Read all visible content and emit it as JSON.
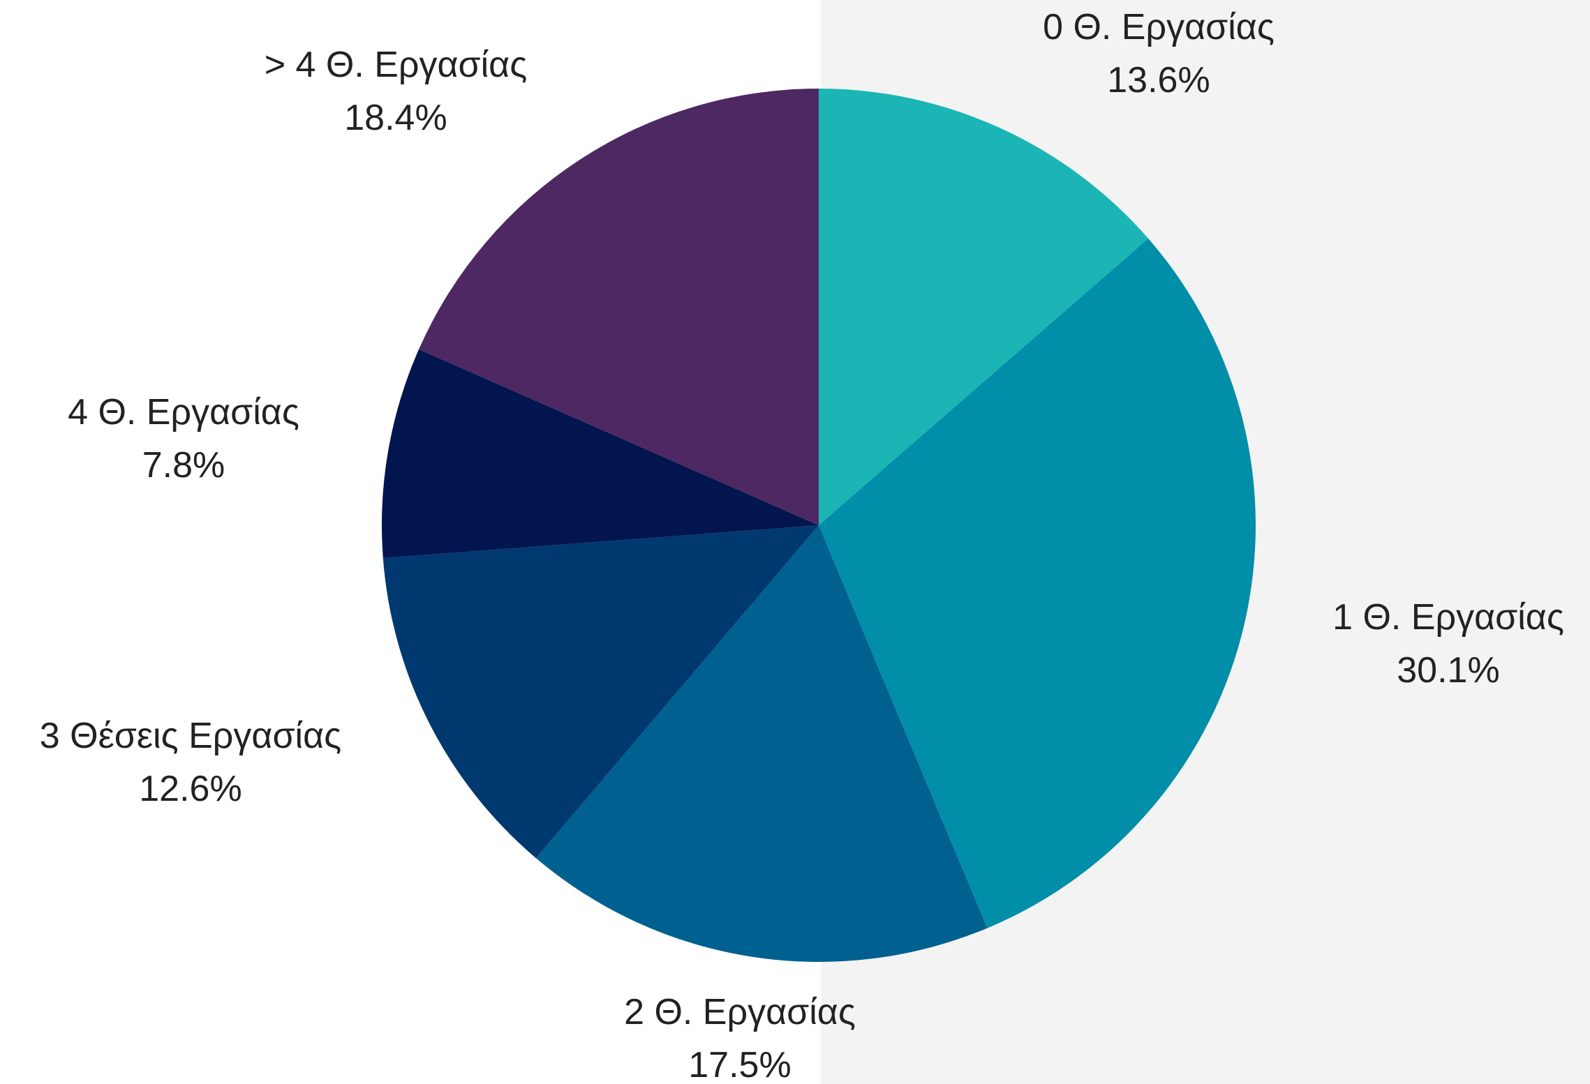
{
  "chart_data": {
    "type": "pie",
    "title": "",
    "start_angle_deg": 0,
    "direction": "clockwise",
    "slices": [
      {
        "label": "0 Θ. Εργασίας",
        "value": 13.6,
        "value_label": "13.6%",
        "color": "#1bb5b5"
      },
      {
        "label": "1 Θ. Εργασίας",
        "value": 30.1,
        "value_label": "30.1%",
        "color": "#008ea9"
      },
      {
        "label": "2 Θ. Εργασίας",
        "value": 17.5,
        "value_label": "17.5%",
        "color": "#006090"
      },
      {
        "label": "3 Θέσεις Εργασίας",
        "value": 12.6,
        "value_label": "12.6%",
        "color": "#003970"
      },
      {
        "label": "4 Θ. Εργασίας",
        "value": 7.8,
        "value_label": "7.8%",
        "color": "#03154f"
      },
      {
        "label": "> 4 Θ. Εργασίας",
        "value": 18.4,
        "value_label": "18.4%",
        "color": "#4d2862"
      }
    ]
  },
  "colors": {
    "background": "#ffffff",
    "right_panel": "#f3f3f3",
    "label_text": "#222222"
  }
}
